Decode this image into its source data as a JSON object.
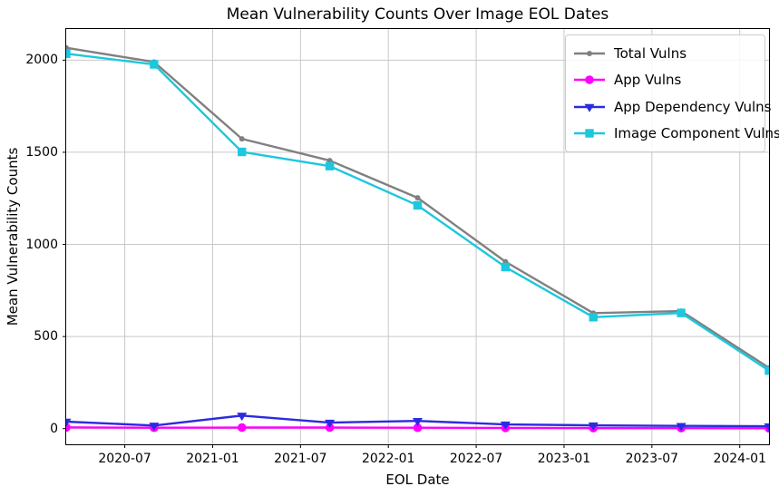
{
  "chart_data": {
    "type": "line",
    "title": "Mean Vulnerability Counts Over Image EOL Dates",
    "xlabel": "EOL Date",
    "ylabel": "Mean Vulnerability Counts",
    "x_dates": [
      "2020-03",
      "2020-09",
      "2021-03",
      "2021-09",
      "2022-03",
      "2022-09",
      "2023-03",
      "2023-09",
      "2024-03"
    ],
    "x_tick_labels": [
      "2020-07",
      "2021-01",
      "2021-07",
      "2022-01",
      "2022-07",
      "2023-01",
      "2023-07",
      "2024-01"
    ],
    "x_tick_month_offsets": [
      4,
      10,
      16,
      22,
      28,
      34,
      40,
      46
    ],
    "x_total_months": 48,
    "y_ticks": [
      0,
      500,
      1000,
      1500,
      2000
    ],
    "ylim": [
      -85,
      2169
    ],
    "grid": true,
    "grid_color": "#c9c9c9",
    "legend_position": "upper right",
    "series": [
      {
        "name": "Total Vulns",
        "color": "#808080",
        "marker": "circle-small",
        "values": [
          2067,
          1990,
          1573,
          1455,
          1253,
          906,
          627,
          638,
          330
        ]
      },
      {
        "name": "App Vulns",
        "color": "#ff00ff",
        "marker": "circle",
        "values": [
          7,
          5,
          6,
          6,
          5,
          4,
          3,
          3,
          2
        ]
      },
      {
        "name": "App Dependency Vulns",
        "color": "#2b2be0",
        "marker": "triangle-down",
        "values": [
          38,
          17,
          71,
          33,
          42,
          23,
          18,
          15,
          13
        ]
      },
      {
        "name": "Image Component Vulns",
        "color": "#1dc7de",
        "marker": "square",
        "values": [
          2035,
          1977,
          1502,
          1425,
          1212,
          877,
          605,
          628,
          315
        ]
      }
    ]
  }
}
